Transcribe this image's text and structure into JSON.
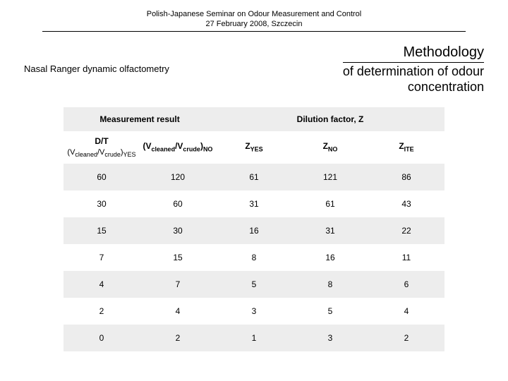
{
  "header": {
    "line1": "Polish-Japanese Seminar on Odour Measurement and Control",
    "line2": "27 February 2008, Szczecin"
  },
  "titles": {
    "methodology": "Methodology",
    "nasal": "Nasal Ranger dynamic olfactometry",
    "determination_l1": "of determination of odour",
    "determination_l2": "concentration"
  },
  "table": {
    "group_left": "Measurement result",
    "group_right": "Dilution factor, Z",
    "col1_top": "D/T",
    "col1_bot_pre": "(V",
    "col1_bot_s1": "cleaned",
    "col1_bot_mid": "/V",
    "col1_bot_s2": "crude",
    "col1_bot_post": ")",
    "col1_bot_s3": "YES",
    "col2_pre": "(V",
    "col2_s1": "cleaned",
    "col2_mid": "/V",
    "col2_s2": "crude",
    "col2_post": ")",
    "col2_s3": "NO",
    "col3_pre": "Z",
    "col3_s": "YES",
    "col4_pre": "Z",
    "col4_s": "NO",
    "col5_pre": "Z",
    "col5_s": "ITE",
    "rows": [
      [
        "60",
        "120",
        "61",
        "121",
        "86"
      ],
      [
        "30",
        "60",
        "31",
        "61",
        "43"
      ],
      [
        "15",
        "30",
        "16",
        "31",
        "22"
      ],
      [
        "7",
        "15",
        "8",
        "16",
        "11"
      ],
      [
        "4",
        "7",
        "5",
        "8",
        "6"
      ],
      [
        "2",
        "4",
        "3",
        "5",
        "4"
      ],
      [
        "0",
        "2",
        "1",
        "3",
        "2"
      ]
    ]
  },
  "colors": {
    "shade": "#ededed",
    "bg": "#ffffff",
    "text": "#000000"
  }
}
